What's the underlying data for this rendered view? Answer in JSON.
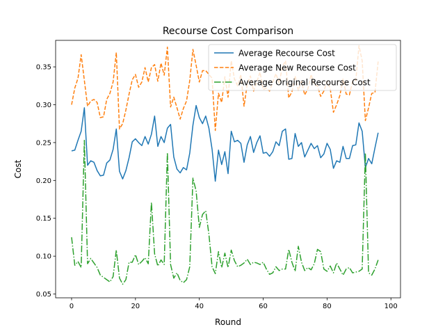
{
  "chart_data": {
    "type": "line",
    "title": "Recourse Cost Comparison",
    "xlabel": "Round",
    "ylabel": "Cost",
    "xlim": [
      -5,
      103
    ],
    "ylim": [
      0.045,
      0.385
    ],
    "xticks": [
      0,
      20,
      40,
      60,
      80,
      100
    ],
    "yticks": [
      0.05,
      0.1,
      0.15,
      0.2,
      0.25,
      0.3,
      0.35
    ],
    "ytick_labels": [
      "0.05",
      "0.10",
      "0.15",
      "0.20",
      "0.25",
      "0.30",
      "0.35"
    ],
    "legend_position": "top-right",
    "grid": false,
    "series": [
      {
        "name": "Average Recourse Cost",
        "color": "#1f77b4",
        "style": "solid",
        "values": [
          0.239,
          0.24,
          0.253,
          0.265,
          0.296,
          0.22,
          0.226,
          0.224,
          0.213,
          0.206,
          0.207,
          0.223,
          0.227,
          0.241,
          0.268,
          0.212,
          0.202,
          0.213,
          0.23,
          0.251,
          0.255,
          0.25,
          0.246,
          0.258,
          0.248,
          0.261,
          0.285,
          0.245,
          0.258,
          0.25,
          0.269,
          0.274,
          0.231,
          0.215,
          0.21,
          0.217,
          0.214,
          0.236,
          0.273,
          0.299,
          0.283,
          0.275,
          0.285,
          0.269,
          0.241,
          0.199,
          0.24,
          0.221,
          0.238,
          0.209,
          0.265,
          0.251,
          0.253,
          0.249,
          0.224,
          0.247,
          0.258,
          0.237,
          0.25,
          0.259,
          0.236,
          0.237,
          0.232,
          0.238,
          0.251,
          0.246,
          0.265,
          0.268,
          0.228,
          0.229,
          0.262,
          0.245,
          0.25,
          0.231,
          0.24,
          0.249,
          0.242,
          0.246,
          0.23,
          0.235,
          0.249,
          0.241,
          0.216,
          0.226,
          0.224,
          0.245,
          0.229,
          0.229,
          0.246,
          0.247,
          0.276,
          0.265,
          0.217,
          0.229,
          0.222,
          0.243,
          0.263
        ]
      },
      {
        "name": "Average New Recourse Cost",
        "color": "#ff7f0e",
        "style": "dashed",
        "values": [
          0.3,
          0.322,
          0.335,
          0.366,
          0.332,
          0.298,
          0.305,
          0.307,
          0.303,
          0.283,
          0.284,
          0.307,
          0.315,
          0.33,
          0.369,
          0.268,
          0.275,
          0.293,
          0.314,
          0.333,
          0.34,
          0.323,
          0.33,
          0.349,
          0.33,
          0.349,
          0.353,
          0.331,
          0.355,
          0.339,
          0.376,
          0.297,
          0.31,
          0.296,
          0.281,
          0.295,
          0.305,
          0.332,
          0.373,
          0.352,
          0.33,
          0.345,
          0.345,
          0.34,
          0.335,
          0.266,
          0.315,
          0.303,
          0.337,
          0.31,
          0.358,
          0.334,
          0.325,
          0.34,
          0.298,
          0.327,
          0.338,
          0.318,
          0.33,
          0.343,
          0.32,
          0.322,
          0.318,
          0.33,
          0.341,
          0.328,
          0.35,
          0.358,
          0.309,
          0.317,
          0.338,
          0.319,
          0.331,
          0.313,
          0.321,
          0.34,
          0.326,
          0.325,
          0.311,
          0.318,
          0.331,
          0.321,
          0.29,
          0.3,
          0.312,
          0.334,
          0.314,
          0.313,
          0.331,
          0.332,
          0.378,
          0.358,
          0.279,
          0.296,
          0.315,
          0.316,
          0.357
        ]
      },
      {
        "name": "Average Original Recourse Cost",
        "color": "#2ca02c",
        "style": "dashdot",
        "values": [
          0.125,
          0.088,
          0.093,
          0.085,
          0.253,
          0.09,
          0.097,
          0.091,
          0.085,
          0.075,
          0.072,
          0.069,
          0.066,
          0.073,
          0.108,
          0.071,
          0.063,
          0.069,
          0.092,
          0.092,
          0.102,
          0.089,
          0.093,
          0.098,
          0.09,
          0.171,
          0.103,
          0.087,
          0.095,
          0.089,
          0.237,
          0.089,
          0.071,
          0.078,
          0.068,
          0.065,
          0.069,
          0.086,
          0.203,
          0.186,
          0.138,
          0.155,
          0.16,
          0.129,
          0.086,
          0.077,
          0.106,
          0.085,
          0.104,
          0.085,
          0.108,
          0.094,
          0.086,
          0.088,
          0.091,
          0.096,
          0.089,
          0.092,
          0.091,
          0.089,
          0.092,
          0.083,
          0.076,
          0.078,
          0.086,
          0.081,
          0.083,
          0.083,
          0.109,
          0.092,
          0.08,
          0.113,
          0.092,
          0.081,
          0.085,
          0.082,
          0.09,
          0.109,
          0.106,
          0.083,
          0.08,
          0.087,
          0.078,
          0.091,
          0.083,
          0.075,
          0.083,
          0.085,
          0.078,
          0.079,
          0.08,
          0.083,
          0.236,
          0.078,
          0.075,
          0.083,
          0.095
        ]
      }
    ]
  }
}
